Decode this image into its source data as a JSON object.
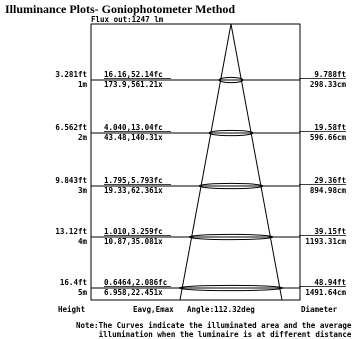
{
  "title": "Illuminance Plots- Goniophotometer Method",
  "flux_label": "Flux out:1247 lm",
  "rows": [
    {
      "height_ft": "3.281ft",
      "height_m": "1m",
      "fc": "16.16,52.14fc",
      "lx": "173.9,561.21x",
      "dia_ft": "9.788ft",
      "dia_cm": "298.33cm"
    },
    {
      "height_ft": "6.562ft",
      "height_m": "2m",
      "fc": "4.040,13.04fc",
      "lx": "43.48,140.31x",
      "dia_ft": "19.58ft",
      "dia_cm": "596.66cm"
    },
    {
      "height_ft": "9.843ft",
      "height_m": "3m",
      "fc": "1.795,5.793fc",
      "lx": "19.33,62.361x",
      "dia_ft": "29.36ft",
      "dia_cm": "894.98cm"
    },
    {
      "height_ft": "13.12ft",
      "height_m": "4m",
      "fc": "1.010,3.259fc",
      "lx": "10.87,35.081x",
      "dia_ft": "39.15ft",
      "dia_cm": "1193.31cm"
    },
    {
      "height_ft": "16.4ft",
      "height_m": "5m",
      "fc": "0.6464,2.086fc",
      "lx": "6.958,22.451x",
      "dia_ft": "48.94ft",
      "dia_cm": "1491.64cm"
    }
  ],
  "footer": {
    "height": "Height",
    "eavg": "Eavg,Emax",
    "angle": "Angle:112.32deg",
    "diameter": "Diameter"
  },
  "note": {
    "line1": "Note:The Curves indicate the illuminated area and the average",
    "line2": "     illumination when the luminaire is at different distance"
  },
  "colors": {
    "ink": "#000000",
    "background": "#ffffff"
  }
}
